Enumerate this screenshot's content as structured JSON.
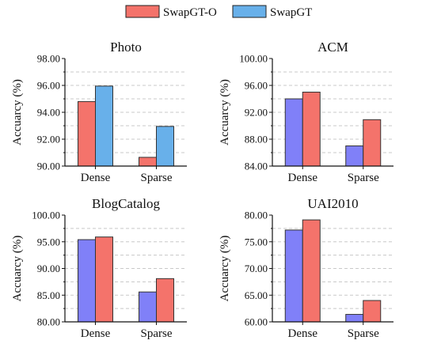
{
  "legend": [
    {
      "label": "SwapGT-O",
      "color": "#f4736b"
    },
    {
      "label": "SwapGT",
      "color": "#68b0ea"
    }
  ],
  "chart_data": [
    {
      "type": "bar",
      "title": "Photo",
      "ylabel": "Accuarcy (%)",
      "categories": [
        "Dense",
        "Sparse"
      ],
      "ylim": [
        90,
        98
      ],
      "yticks": [
        "90.00",
        "92.00",
        "94.00",
        "96.00",
        "98.00"
      ],
      "series": [
        {
          "name": "SwapGT-O",
          "color": "#f4736b",
          "values": [
            94.8,
            90.65
          ]
        },
        {
          "name": "SwapGT",
          "color": "#68b0ea",
          "values": [
            95.95,
            92.95
          ]
        }
      ]
    },
    {
      "type": "bar",
      "title": "ACM",
      "ylabel": "Accuarcy (%)",
      "categories": [
        "Dense",
        "Sparse"
      ],
      "ylim": [
        84,
        100
      ],
      "yticks": [
        "84.00",
        "88.00",
        "92.00",
        "96.00",
        "100.00"
      ],
      "series": [
        {
          "color": "#8080f8",
          "values": [
            94.0,
            87.0
          ]
        },
        {
          "color": "#f4736b",
          "values": [
            95.0,
            90.9
          ]
        }
      ]
    },
    {
      "type": "bar",
      "title": "BlogCatalog",
      "ylabel": "Accuarcy (%)",
      "categories": [
        "Dense",
        "Sparse"
      ],
      "ylim": [
        80,
        100
      ],
      "yticks": [
        "80.00",
        "85.00",
        "90.00",
        "95.00",
        "100.00"
      ],
      "series": [
        {
          "color": "#8080f8",
          "values": [
            95.4,
            85.6
          ]
        },
        {
          "color": "#f4736b",
          "values": [
            95.9,
            88.1
          ]
        }
      ]
    },
    {
      "type": "bar",
      "title": "UAI2010",
      "ylabel": "Accuarcy (%)",
      "categories": [
        "Dense",
        "Sparse"
      ],
      "ylim": [
        60,
        80
      ],
      "yticks": [
        "60.00",
        "65.00",
        "70.00",
        "75.00",
        "80.00"
      ],
      "series": [
        {
          "color": "#8080f8",
          "values": [
            77.2,
            61.4
          ]
        },
        {
          "color": "#f4736b",
          "values": [
            79.1,
            64.0
          ]
        }
      ]
    }
  ]
}
